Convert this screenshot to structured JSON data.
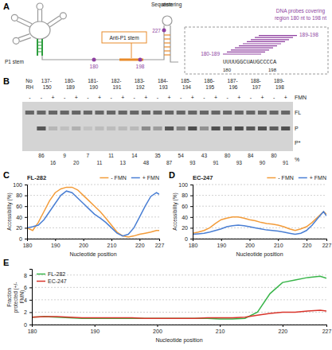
{
  "panel_labels": [
    "A",
    "B",
    "C",
    "D",
    "E"
  ],
  "diagram": {
    "p1_stem": "P1 stem",
    "anti_p1_stem": "Anti-P1 stem",
    "sequestering_stem": "Sequestering stem",
    "markers": [
      "180",
      "198",
      "227"
    ],
    "probes_title": "DNA probes covering region 180 nt to 198 nt",
    "probe_first": "180-189",
    "probe_last": "189-198",
    "sequence": "UUUUGGCUAUGCCCCA",
    "sequence_ends": [
      "180",
      "198"
    ]
  },
  "gel": {
    "groups": [
      "No RH",
      "137-150",
      "180-189",
      "181-190",
      "182-191",
      "183-192",
      "184-193",
      "185-194",
      "186-195",
      "187-196",
      "188-197",
      "189-198"
    ],
    "fmn_signs": [
      [
        "-"
      ],
      [
        "-",
        "+"
      ],
      [
        "-",
        "+"
      ],
      [
        "-",
        "+"
      ],
      [
        "-",
        "+"
      ],
      [
        "-",
        "+"
      ],
      [
        "-",
        "+"
      ],
      [
        "-",
        "+"
      ],
      [
        "-",
        "+"
      ],
      [
        "-",
        "+"
      ],
      [
        "-",
        "+"
      ],
      [
        "-",
        "+"
      ]
    ],
    "fmn_label": "FMN",
    "bands": [
      "FL",
      "P",
      "P*"
    ],
    "percents": [
      [],
      [
        86,
        16
      ],
      [
        9,
        20
      ],
      [
        7,
        11
      ],
      [
        11,
        13
      ],
      [
        14,
        48
      ],
      [
        35,
        87
      ],
      [
        54,
        93
      ],
      [
        43,
        91
      ],
      [
        80,
        93
      ],
      [
        84,
        90
      ],
      [
        80,
        91
      ]
    ],
    "percent_unit": "%"
  },
  "chart_data": [
    {
      "type": "line",
      "title": "FL-282",
      "x_label": "Nucleotide position",
      "y_label": "Accessibility (%)",
      "x": [
        180,
        182,
        184,
        186,
        188,
        190,
        192,
        194,
        196,
        198,
        200,
        202,
        204,
        206,
        208,
        210,
        212,
        214,
        216,
        218,
        220,
        222,
        224,
        226,
        227
      ],
      "series": [
        {
          "name": "- FMN",
          "color": "#f39c3a",
          "values": [
            20,
            15,
            30,
            50,
            70,
            85,
            92,
            95,
            95,
            90,
            80,
            70,
            60,
            50,
            38,
            25,
            12,
            5,
            3,
            5,
            8,
            10,
            12,
            15,
            15
          ]
        },
        {
          "name": "+ FMN",
          "color": "#4a7fd4",
          "values": [
            20,
            22,
            25,
            35,
            50,
            65,
            80,
            88,
            85,
            75,
            65,
            55,
            45,
            38,
            30,
            20,
            10,
            5,
            8,
            20,
            40,
            60,
            78,
            85,
            82
          ]
        }
      ],
      "xlim": [
        180,
        227
      ],
      "ylim": [
        0,
        100
      ],
      "xticks": [
        180,
        190,
        200,
        210,
        220,
        227
      ],
      "yticks": [
        0,
        20,
        40,
        60,
        80,
        100
      ],
      "grid": true,
      "legend": "top-right"
    },
    {
      "type": "line",
      "title": "EC-247",
      "x_label": "Nucleotide position",
      "y_label": "Accessibility (%)",
      "x": [
        180,
        182,
        184,
        186,
        188,
        190,
        192,
        194,
        196,
        198,
        200,
        202,
        204,
        206,
        208,
        210,
        212,
        214,
        216,
        218,
        220,
        222,
        224,
        226,
        227
      ],
      "series": [
        {
          "name": "- FMN",
          "color": "#f39c3a",
          "values": [
            10,
            12,
            15,
            20,
            28,
            35,
            38,
            40,
            40,
            38,
            35,
            33,
            30,
            28,
            27,
            25,
            22,
            18,
            15,
            18,
            22,
            30,
            40,
            50,
            45
          ]
        },
        {
          "name": "+ FMN",
          "color": "#4a7fd4",
          "values": [
            8,
            9,
            10,
            12,
            15,
            18,
            22,
            24,
            25,
            24,
            22,
            20,
            18,
            16,
            15,
            14,
            12,
            10,
            8,
            10,
            15,
            25,
            38,
            50,
            42
          ]
        }
      ],
      "xlim": [
        180,
        227
      ],
      "ylim": [
        0,
        100
      ],
      "xticks": [
        180,
        190,
        200,
        210,
        220,
        227
      ],
      "yticks": [
        0,
        20,
        40,
        60,
        80,
        100
      ],
      "grid": true,
      "legend": "top-right"
    },
    {
      "type": "line",
      "x_label": "Nucleotide position",
      "y_label": "Fraction protected (+/- FMN)",
      "x": [
        180,
        182,
        184,
        186,
        188,
        190,
        192,
        194,
        196,
        198,
        200,
        202,
        204,
        206,
        208,
        210,
        212,
        214,
        216,
        218,
        220,
        222,
        224,
        226,
        227
      ],
      "series": [
        {
          "name": "FL-282",
          "color": "#39b54a",
          "values": [
            1.2,
            1.3,
            1.2,
            1.1,
            1.0,
            1.0,
            1.0,
            1.0,
            1.0,
            1.0,
            1.0,
            1.0,
            1.0,
            1.0,
            1.0,
            0.9,
            0.9,
            1.0,
            2.0,
            5.0,
            6.8,
            7.2,
            7.6,
            7.8,
            7.5
          ]
        },
        {
          "name": "EC-247",
          "color": "#d9342b",
          "values": [
            1.2,
            1.3,
            1.3,
            1.2,
            1.1,
            1.1,
            1.1,
            1.1,
            1.1,
            1.0,
            1.0,
            1.0,
            1.0,
            1.0,
            1.1,
            1.1,
            1.1,
            1.2,
            1.5,
            1.8,
            2.0,
            2.0,
            2.2,
            2.3,
            2.2
          ]
        }
      ],
      "xlim": [
        180,
        227
      ],
      "ylim": [
        0,
        9
      ],
      "xticks": [
        180,
        190,
        200,
        210,
        220,
        227
      ],
      "yticks": [
        0,
        2,
        4,
        6,
        8
      ],
      "grid": true,
      "legend": "top-left"
    }
  ]
}
